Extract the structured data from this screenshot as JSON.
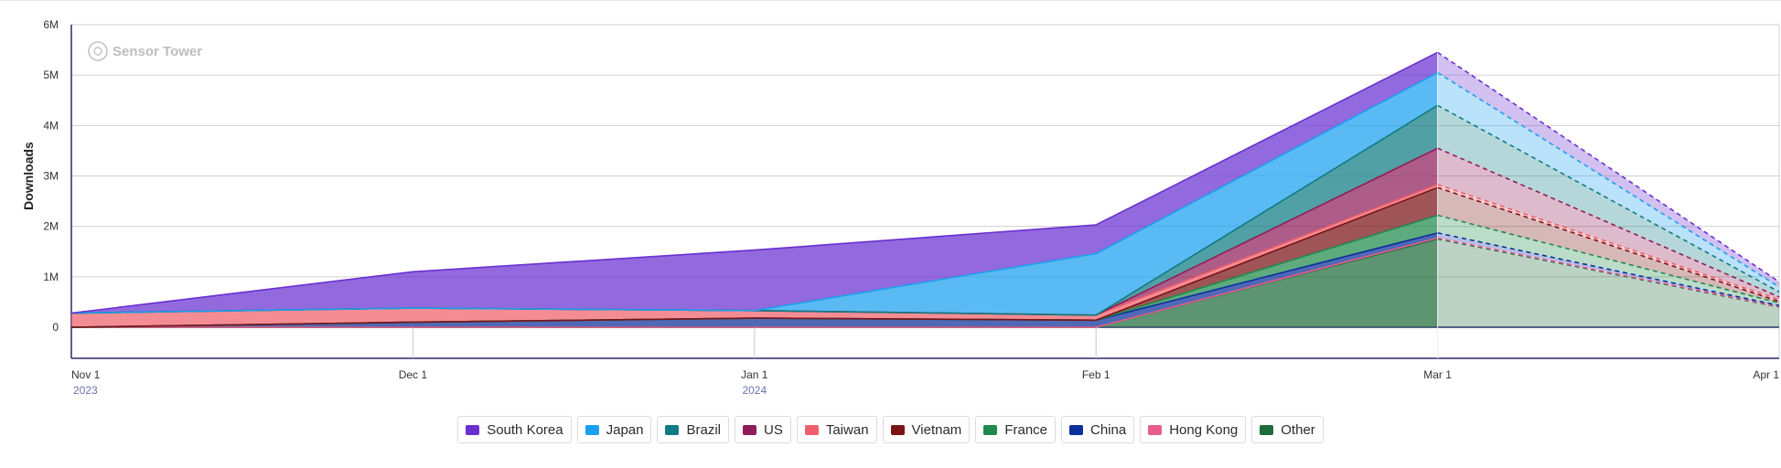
{
  "chart_data": {
    "type": "area",
    "stacked": true,
    "ylabel": "Downloads",
    "watermark": "Sensor Tower",
    "x": [
      "Nov 1",
      "Dec 1",
      "Jan 1",
      "Feb 1",
      "Mar 1",
      "Apr 1"
    ],
    "year_labels": [
      "2023",
      "",
      "2024",
      "",
      "",
      ""
    ],
    "y_ticks": [
      "0",
      "1M",
      "2M",
      "3M",
      "4M",
      "5M",
      "6M"
    ],
    "ylim": [
      0,
      6000000
    ],
    "projected_from": "Mar 1",
    "series": [
      {
        "name": "Other",
        "color": "#1e6b3a",
        "values": [
          0,
          0,
          0,
          0,
          1750000,
          400000
        ]
      },
      {
        "name": "Hong Kong",
        "color": "#e85d8c",
        "values": [
          0,
          0,
          0,
          0,
          20000,
          10000
        ]
      },
      {
        "name": "China",
        "color": "#0b2f9a",
        "values": [
          0,
          100000,
          180000,
          140000,
          100000,
          20000
        ]
      },
      {
        "name": "France",
        "color": "#1f8a4c",
        "values": [
          0,
          0,
          0,
          0,
          350000,
          50000
        ]
      },
      {
        "name": "Vietnam",
        "color": "#7a1416",
        "values": [
          0,
          0,
          0,
          0,
          550000,
          30000
        ]
      },
      {
        "name": "Taiwan",
        "color": "#f0606b",
        "values": [
          280000,
          280000,
          150000,
          100000,
          60000,
          40000
        ]
      },
      {
        "name": "US",
        "color": "#8f1d5a",
        "values": [
          0,
          0,
          0,
          0,
          720000,
          50000
        ]
      },
      {
        "name": "Brazil",
        "color": "#0e7c82",
        "values": [
          0,
          0,
          0,
          0,
          850000,
          100000
        ]
      },
      {
        "name": "Japan",
        "color": "#1aa0ee",
        "values": [
          0,
          0,
          0,
          1220000,
          650000,
          100000
        ]
      },
      {
        "name": "South Korea",
        "color": "#6a2fd1",
        "values": [
          0,
          720000,
          1200000,
          570000,
          400000,
          100000
        ]
      }
    ],
    "legend_order": [
      "South Korea",
      "Japan",
      "Brazil",
      "US",
      "Taiwan",
      "Vietnam",
      "France",
      "China",
      "Hong Kong",
      "Other"
    ],
    "grid": true,
    "legend_position": "bottom"
  }
}
